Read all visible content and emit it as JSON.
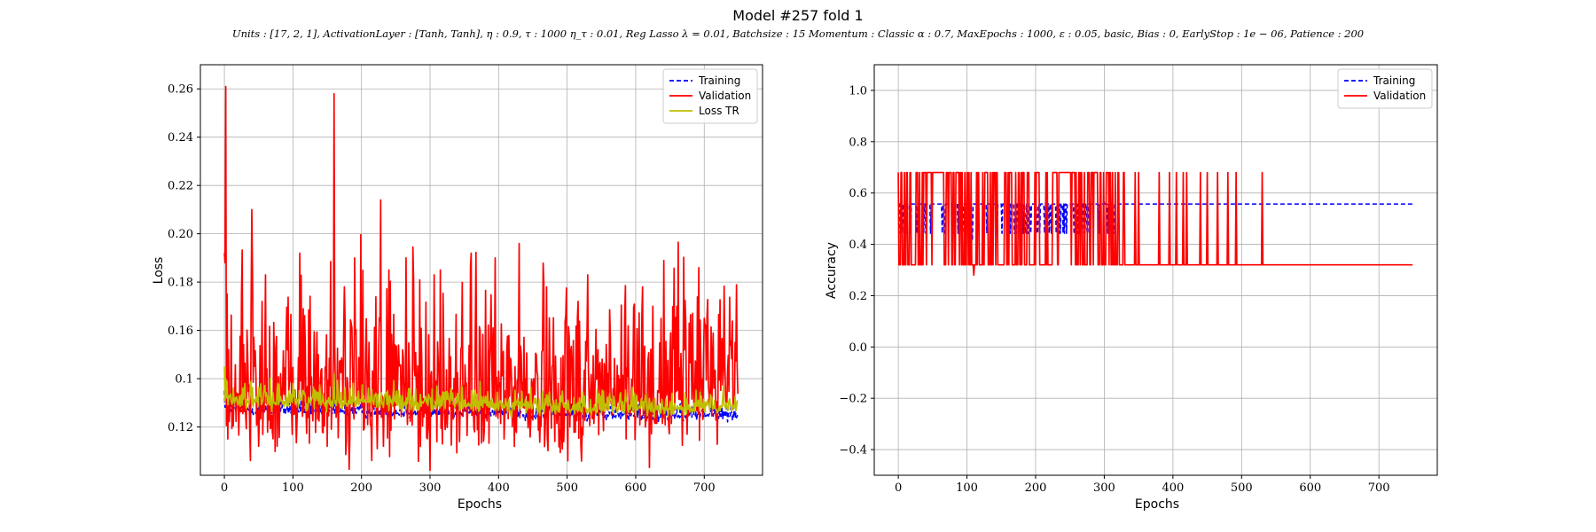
{
  "figure": {
    "title": "Model #257 fold 1",
    "subtitle": "Units : [17, 2, 1], ActivationLayer : [Tanh, Tanh], η : 0.9, τ : 1000 η_τ : 0.01, Reg Lasso λ = 0.01, Batchsize : 15 Momentum : Classic α : 0.7, MaxEpochs : 1000, ε : 0.05, basic, Bias : 0, EarlyStop : 1e − 06, Patience : 200"
  },
  "chart_data": [
    {
      "type": "line",
      "xlabel": "Epochs",
      "ylabel": "Loss",
      "xlim": [
        -35,
        785
      ],
      "ylim": [
        0.1,
        0.27
      ],
      "xticks": [
        0,
        100,
        200,
        300,
        400,
        500,
        600,
        700
      ],
      "yticks": [
        0.12,
        0.14,
        0.16,
        0.18,
        0.2,
        0.22,
        0.24,
        0.26
      ],
      "grid": true,
      "legend_position": "top-right",
      "series": [
        {
          "name": "Training",
          "color": "#0000ff",
          "style": "dashed",
          "n": 750,
          "base": [
            [
              0,
              0.128
            ],
            [
              20,
              0.127
            ],
            [
              100,
              0.127
            ],
            [
              200,
              0.126
            ],
            [
              300,
              0.126
            ],
            [
              400,
              0.126
            ],
            [
              500,
              0.125
            ],
            [
              600,
              0.125
            ],
            [
              700,
              0.125
            ],
            [
              749,
              0.125
            ]
          ],
          "noise": 0.002,
          "peaks": [
            [
              0,
              0.135
            ],
            [
              160,
              0.133
            ],
            [
              305,
              0.132
            ]
          ]
        },
        {
          "name": "Validation",
          "color": "#ff0000",
          "style": "solid",
          "n": 750,
          "base": [
            [
              0,
              0.135
            ],
            [
              50,
              0.133
            ],
            [
              150,
              0.134
            ],
            [
              300,
              0.133
            ],
            [
              450,
              0.132
            ],
            [
              600,
              0.133
            ],
            [
              700,
              0.14
            ],
            [
              749,
              0.145
            ]
          ],
          "noise": 0.022,
          "peaks": [
            [
              0,
              0.192
            ],
            [
              1,
              0.188
            ],
            [
              2,
              0.261
            ],
            [
              6,
              0.152
            ],
            [
              25,
              0.175
            ],
            [
              40,
              0.21
            ],
            [
              60,
              0.183
            ],
            [
              110,
              0.192
            ],
            [
              150,
              0.188
            ],
            [
              160,
              0.258
            ],
            [
              175,
              0.178
            ],
            [
              190,
              0.19
            ],
            [
              228,
              0.214
            ],
            [
              240,
              0.185
            ],
            [
              265,
              0.19
            ],
            [
              306,
              0.183
            ],
            [
              360,
              0.192
            ],
            [
              395,
              0.19
            ],
            [
              430,
              0.196
            ],
            [
              470,
              0.178
            ],
            [
              516,
              0.172
            ],
            [
              530,
              0.183
            ],
            [
              610,
              0.178
            ],
            [
              625,
              0.17
            ],
            [
              660,
              0.17
            ],
            [
              700,
              0.165
            ],
            [
              745,
              0.155
            ],
            [
              5,
              0.115
            ],
            [
              50,
              0.112
            ],
            [
              70,
              0.118
            ],
            [
              150,
              0.112
            ],
            [
              232,
              0.112
            ],
            [
              318,
              0.113
            ],
            [
              365,
              0.118
            ]
          ]
        },
        {
          "name": "Loss TR",
          "color": "#bfbf00",
          "style": "solid",
          "n": 750,
          "base": [
            [
              0,
              0.132
            ],
            [
              30,
              0.131
            ],
            [
              100,
              0.131
            ],
            [
              200,
              0.131
            ],
            [
              300,
              0.13
            ],
            [
              400,
              0.129
            ],
            [
              500,
              0.128
            ],
            [
              600,
              0.128
            ],
            [
              700,
              0.128
            ],
            [
              749,
              0.128
            ]
          ],
          "noise": 0.003,
          "peaks": [
            [
              0,
              0.145
            ],
            [
              2,
              0.14
            ],
            [
              30,
              0.138
            ],
            [
              100,
              0.138
            ],
            [
              160,
              0.142
            ],
            [
              310,
              0.137
            ]
          ]
        }
      ]
    },
    {
      "type": "line",
      "xlabel": "Epochs",
      "ylabel": "Accuracy",
      "xlim": [
        -35,
        785
      ],
      "ylim": [
        -0.5,
        1.1
      ],
      "xticks": [
        0,
        100,
        200,
        300,
        400,
        500,
        600,
        700
      ],
      "yticks": [
        -0.4,
        -0.2,
        0.0,
        0.2,
        0.4,
        0.6,
        0.8,
        1.0
      ],
      "grid": true,
      "legend_position": "top-right",
      "series": [
        {
          "name": "Training",
          "color": "#0000ff",
          "style": "dashed",
          "n": 750,
          "base_value": 0.557,
          "low_value": 0.443,
          "active_until": 320,
          "dip_rate": 0.18,
          "dips": [
            [
              108,
              0.42
            ],
            [
              300,
              0.57
            ]
          ]
        },
        {
          "name": "Validation",
          "color": "#ff0000",
          "style": "solid",
          "n": 750,
          "low_value": 0.32,
          "high_value": 0.68,
          "active_until": 330,
          "toggle_rate": 0.35,
          "late_spikes": [
            345,
            350,
            380,
            395,
            405,
            415,
            420,
            440,
            450,
            465,
            480,
            492,
            530
          ],
          "dips": [
            [
              110,
              0.28
            ]
          ]
        }
      ]
    }
  ]
}
